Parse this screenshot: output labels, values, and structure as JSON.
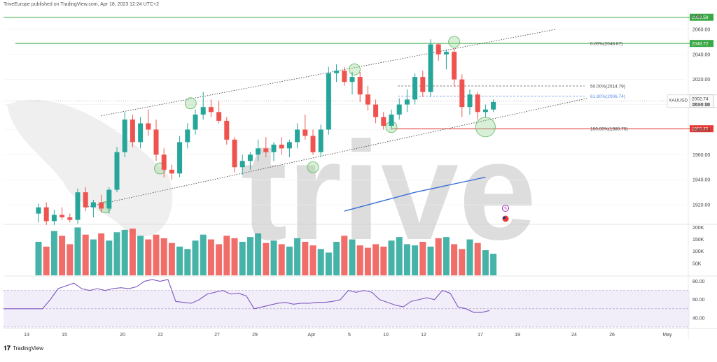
{
  "header": {
    "published_line": "TriveEurope published on TradingView.com, Apr 18, 2023 12:24 UTC+2"
  },
  "footer": {
    "brand": "TradingView"
  },
  "watermark": {
    "text": "trive"
  },
  "chart_data": {
    "type": "candlestick",
    "symbol": "XAUUSD",
    "currency": "USD",
    "last_price": "2002.74",
    "countdown": "03:36:18",
    "price_axis_ticks": [
      "2060.00",
      "2040.00",
      "2020.00",
      "2000.00",
      "1980.00",
      "1960.00",
      "1940.00",
      "1920.00"
    ],
    "x_tick_labels": [
      "13",
      "15",
      "20",
      "22",
      "27",
      "29",
      "Apr",
      "5",
      "10",
      "12",
      "17",
      "19",
      "24",
      "26",
      "May"
    ],
    "horizontal_levels": [
      {
        "label": "2069.59",
        "value": 2069.59,
        "color": "#3aa845"
      },
      {
        "label": "2048.72",
        "value": 2048.72,
        "color": "#3aa845"
      },
      {
        "label": "1980.70",
        "value": 1980.7,
        "color": "#e53935"
      }
    ],
    "fib_levels": [
      {
        "text": "0.00%(2048.87)",
        "value": 2048.87
      },
      {
        "text": "50.00%(2014.79)",
        "value": 2014.79
      },
      {
        "text": "61.80%(2006.74)",
        "value": 2006.74
      },
      {
        "text": "100.00%(1980.70)",
        "value": 1980.7
      }
    ],
    "candles": [
      [
        1913,
        1921,
        1906,
        1918
      ],
      [
        1918,
        1922,
        1904,
        1907
      ],
      [
        1907,
        1916,
        1904,
        1912
      ],
      [
        1912,
        1918,
        1908,
        1910
      ],
      [
        1910,
        1913,
        1906,
        1908
      ],
      [
        1908,
        1933,
        1905,
        1930
      ],
      [
        1930,
        1934,
        1915,
        1918
      ],
      [
        1918,
        1924,
        1910,
        1922
      ],
      [
        1922,
        1928,
        1914,
        1917
      ],
      [
        1917,
        1934,
        1913,
        1932
      ],
      [
        1932,
        1966,
        1930,
        1962
      ],
      [
        1962,
        1994,
        1958,
        1988
      ],
      [
        1988,
        1992,
        1966,
        1970
      ],
      [
        1970,
        1990,
        1965,
        1985
      ],
      [
        1985,
        1996,
        1975,
        1980
      ],
      [
        1980,
        1988,
        1955,
        1960
      ],
      [
        1960,
        1965,
        1942,
        1948
      ],
      [
        1948,
        1952,
        1940,
        1945
      ],
      [
        1945,
        1975,
        1942,
        1970
      ],
      [
        1970,
        1985,
        1965,
        1980
      ],
      [
        1980,
        1996,
        1976,
        1992
      ],
      [
        1992,
        2010,
        1988,
        1998
      ],
      [
        1998,
        2004,
        1990,
        1994
      ],
      [
        1994,
        2003,
        1985,
        1987
      ],
      [
        1987,
        1990,
        1968,
        1972
      ],
      [
        1972,
        1974,
        1946,
        1950
      ],
      [
        1950,
        1960,
        1944,
        1955
      ],
      [
        1955,
        1962,
        1948,
        1960
      ],
      [
        1960,
        1972,
        1955,
        1965
      ],
      [
        1965,
        1974,
        1958,
        1962
      ],
      [
        1962,
        1970,
        1955,
        1968
      ],
      [
        1968,
        1974,
        1960,
        1965
      ],
      [
        1965,
        1972,
        1958,
        1970
      ],
      [
        1970,
        1985,
        1965,
        1980
      ],
      [
        1980,
        1992,
        1972,
        1975
      ],
      [
        1975,
        1980,
        1960,
        1962
      ],
      [
        1962,
        1984,
        1958,
        1980
      ],
      [
        1980,
        2030,
        1976,
        2025
      ],
      [
        2025,
        2032,
        2018,
        2027
      ],
      [
        2027,
        2030,
        2015,
        2018
      ],
      [
        2018,
        2026,
        2008,
        2022
      ],
      [
        2022,
        2026,
        2002,
        2008
      ],
      [
        2008,
        2015,
        1995,
        2000
      ],
      [
        2000,
        2004,
        1985,
        1990
      ],
      [
        1990,
        1994,
        1980,
        1983
      ],
      [
        1983,
        1996,
        1980,
        1992
      ],
      [
        1992,
        2005,
        1988,
        2000
      ],
      [
        2000,
        2012,
        1994,
        2004
      ],
      [
        2004,
        2025,
        2000,
        2022
      ],
      [
        2022,
        2027,
        2006,
        2010
      ],
      [
        2010,
        2052,
        2006,
        2048
      ],
      [
        2048,
        2049,
        2035,
        2040
      ],
      [
        2040,
        2044,
        2028,
        2042
      ],
      [
        2042,
        2045,
        2014,
        2020
      ],
      [
        2020,
        2024,
        1990,
        1998
      ],
      [
        1998,
        2012,
        1992,
        2008
      ],
      [
        2008,
        2010,
        1988,
        1994
      ],
      [
        1994,
        2000,
        1990,
        1996
      ],
      [
        1996,
        2004,
        1994,
        2002
      ]
    ],
    "channel": {
      "upper": [
        [
          0,
          1991
        ],
        [
          58,
          2060
        ]
      ],
      "lower": [
        [
          0,
          1918
        ],
        [
          64,
          2005
        ]
      ]
    },
    "moving_average": [
      [
        39,
        1915
      ],
      [
        48,
        1930
      ],
      [
        57,
        1942
      ]
    ],
    "volume": {
      "axis_ticks": [
        "200K",
        "150K",
        "100K",
        "50K"
      ],
      "values": [
        140,
        120,
        185,
        165,
        130,
        200,
        170,
        150,
        175,
        145,
        180,
        190,
        195,
        165,
        150,
        170,
        155,
        135,
        120,
        110,
        145,
        170,
        150,
        130,
        165,
        155,
        140,
        160,
        175,
        135,
        145,
        130,
        120,
        155,
        140,
        125,
        110,
        95,
        140,
        165,
        150,
        125,
        115,
        130,
        120,
        145,
        160,
        130,
        125,
        140,
        120,
        155,
        160,
        130,
        110,
        150,
        135,
        105,
        90
      ]
    },
    "rsi": {
      "axis_ticks": [
        "80.00",
        "60.00",
        "40.00"
      ],
      "upper_band": 70,
      "lower_band": 30,
      "values": [
        50,
        50,
        60,
        72,
        75,
        78,
        72,
        70,
        72,
        70,
        72,
        73,
        72,
        74,
        80,
        82,
        80,
        82,
        58,
        57,
        56,
        60,
        66,
        68,
        70,
        66,
        67,
        64,
        50,
        52,
        54,
        56,
        57,
        55,
        56,
        56,
        57,
        57,
        58,
        60,
        70,
        68,
        70,
        68,
        60,
        57,
        54,
        52,
        58,
        60,
        62,
        60,
        70,
        67,
        52,
        50,
        46,
        46,
        48
      ]
    }
  }
}
